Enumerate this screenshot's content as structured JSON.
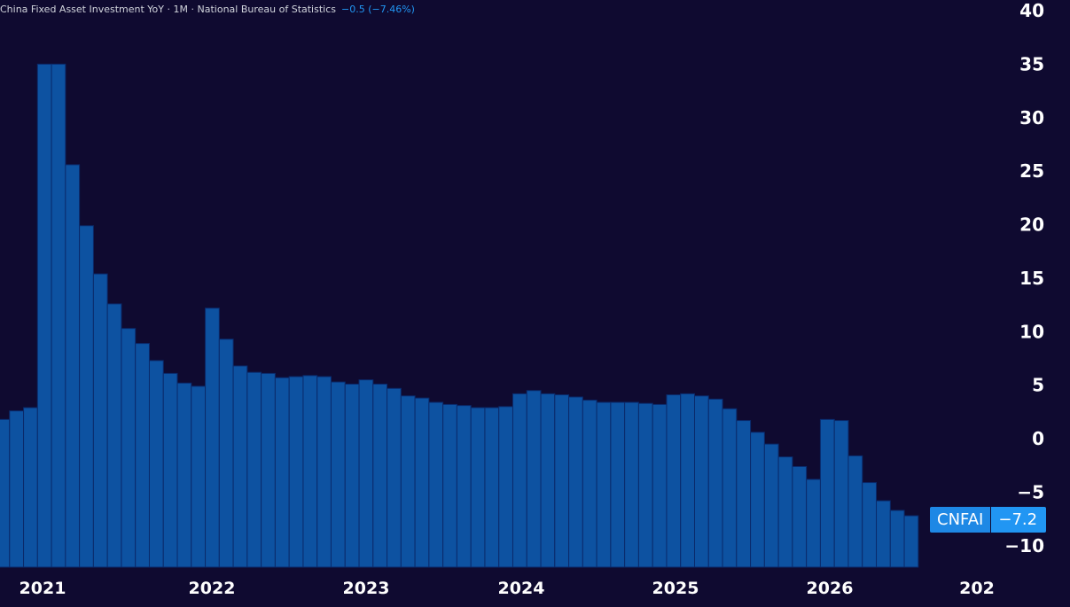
{
  "header": {
    "title": "China Fixed Asset Investment YoY",
    "interval": "1M",
    "source": "National Bureau of Statistics",
    "change": "−0.5 (−7.46%)"
  },
  "badge": {
    "symbol": "CNFAI",
    "value": "−7.2"
  },
  "colors": {
    "background": "#0f0a30",
    "bar": "#0d52a1",
    "bar_border": "#0a2a6b",
    "accent": "#2196f3"
  },
  "chart_data": {
    "type": "bar",
    "ylim": [
      -12,
      40
    ],
    "yticks": [
      40,
      35,
      30,
      25,
      20,
      15,
      10,
      5,
      0,
      -5,
      -10
    ],
    "ytick_labels": [
      "40",
      "35",
      "30",
      "25",
      "20",
      "15",
      "10",
      "5",
      "0",
      "−5",
      "−10"
    ],
    "xtick_labels": [
      "2021",
      "2022",
      "2023",
      "2024",
      "2025",
      "2026",
      "202"
    ],
    "values": [
      1.8,
      2.6,
      2.9,
      35.0,
      35.0,
      25.6,
      19.9,
      15.4,
      12.6,
      10.3,
      8.9,
      7.3,
      6.1,
      5.2,
      4.9,
      12.2,
      9.3,
      6.8,
      6.2,
      6.1,
      5.7,
      5.8,
      5.9,
      5.8,
      5.3,
      5.1,
      5.5,
      5.1,
      4.7,
      4.0,
      3.8,
      3.4,
      3.2,
      3.1,
      2.9,
      2.9,
      3.0,
      4.2,
      4.5,
      4.2,
      4.1,
      3.9,
      3.6,
      3.4,
      3.4,
      3.4,
      3.3,
      3.2,
      4.1,
      4.2,
      4.0,
      3.7,
      2.8,
      1.7,
      0.6,
      -0.5,
      -1.7,
      -2.6,
      -3.8,
      1.8,
      1.7,
      -1.6,
      -4.1,
      -5.8,
      -6.7,
      -7.2
    ]
  }
}
